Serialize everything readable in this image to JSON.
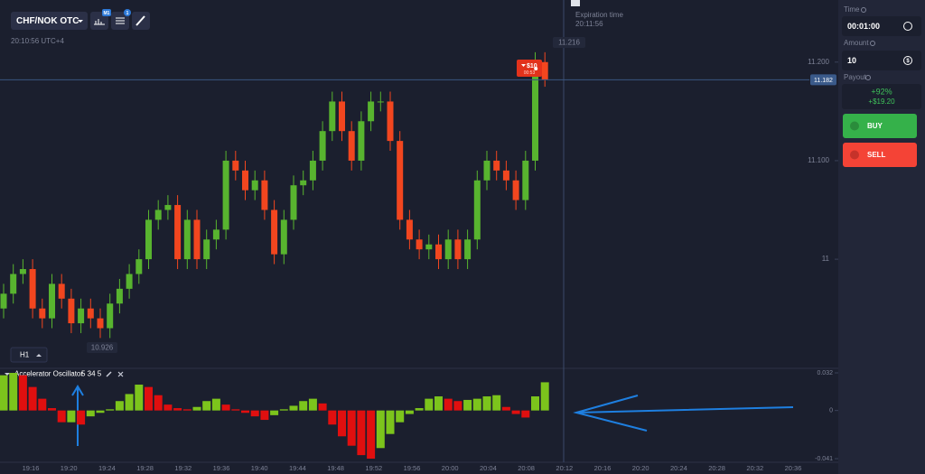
{
  "header": {
    "pair": "CHF/NOK OTC",
    "badge_1": "M1",
    "badge_2": "1",
    "server_time": "20:10:56 UTC+4",
    "timeframe": "H1"
  },
  "expiration": {
    "label": "Expiration time",
    "time": "20:11:56"
  },
  "time_axis": [
    "19:16",
    "19:20",
    "19:24",
    "19:28",
    "19:32",
    "19:36",
    "19:40",
    "19:44",
    "19:48",
    "19:52",
    "19:56",
    "20:00",
    "20:04",
    "20:08",
    "20:12",
    "20:16",
    "20:20",
    "20:24",
    "20:28",
    "20:32",
    "20:36"
  ],
  "chart_data": [
    {
      "type": "candlestick",
      "open": [
        10.95,
        10.965,
        10.985,
        10.99,
        10.95,
        10.94,
        10.975,
        10.96,
        10.935,
        10.95,
        10.94,
        10.93,
        10.955,
        10.97,
        10.985,
        11.0,
        11.04,
        11.05,
        11.055,
        11.0,
        11.04,
        11.0,
        11.02,
        11.03,
        11.1,
        11.09,
        11.07,
        11.08,
        11.05,
        11.005,
        11.04,
        11.075,
        11.08,
        11.1,
        11.13,
        11.16,
        11.13,
        11.1,
        11.14,
        11.16,
        11.16,
        11.12,
        11.04,
        11.02,
        11.01,
        11.015,
        11.0,
        11.02,
        11.0,
        11.02,
        11.08,
        11.1,
        11.09,
        11.08,
        11.06,
        11.1,
        11.2
      ],
      "high": [
        10.975,
        10.995,
        11.0,
        11.0,
        10.96,
        10.985,
        10.985,
        10.97,
        10.96,
        10.96,
        10.95,
        10.965,
        10.98,
        10.995,
        11.01,
        11.05,
        11.06,
        11.065,
        11.065,
        11.05,
        11.05,
        11.03,
        11.04,
        11.11,
        11.11,
        11.1,
        11.09,
        11.09,
        11.06,
        11.05,
        11.085,
        11.09,
        11.11,
        11.14,
        11.17,
        11.17,
        11.14,
        11.15,
        11.17,
        11.17,
        11.17,
        11.13,
        11.05,
        11.03,
        11.025,
        11.025,
        11.03,
        11.03,
        11.03,
        11.09,
        11.11,
        11.11,
        11.1,
        11.09,
        11.11,
        11.21,
        11.21
      ],
      "low": [
        10.94,
        10.955,
        10.975,
        10.94,
        10.93,
        10.93,
        10.95,
        10.925,
        10.925,
        10.93,
        10.92,
        10.92,
        10.945,
        10.96,
        10.975,
        10.99,
        11.03,
        11.04,
        10.99,
        10.99,
        10.99,
        10.99,
        11.01,
        11.02,
        11.08,
        11.06,
        11.06,
        11.04,
        10.995,
        10.995,
        11.03,
        11.065,
        11.07,
        11.09,
        11.12,
        11.12,
        11.09,
        11.09,
        11.13,
        11.15,
        11.11,
        11.03,
        11.01,
        11.0,
        11.0,
        10.99,
        10.99,
        10.99,
        10.99,
        11.01,
        11.07,
        11.08,
        11.07,
        11.05,
        11.05,
        11.09,
        11.175
      ],
      "close": [
        10.965,
        10.985,
        10.99,
        10.95,
        10.94,
        10.975,
        10.96,
        10.935,
        10.95,
        10.94,
        10.93,
        10.955,
        10.97,
        10.985,
        11.0,
        11.04,
        11.05,
        11.055,
        11.0,
        11.04,
        11.0,
        11.02,
        11.03,
        11.1,
        11.09,
        11.07,
        11.08,
        11.05,
        11.005,
        11.04,
        11.075,
        11.08,
        11.1,
        11.13,
        11.16,
        11.13,
        11.1,
        11.14,
        11.16,
        11.16,
        11.12,
        11.04,
        11.02,
        11.01,
        11.015,
        11.0,
        11.02,
        11.0,
        11.02,
        11.08,
        11.1,
        11.09,
        11.08,
        11.06,
        11.1,
        11.2,
        11.182
      ],
      "up_color": "#58b42f",
      "down_color": "#f2461f",
      "ylim": [
        10.892,
        11.263
      ],
      "yticks": [
        {
          "value": 11.2,
          "label": "11.200"
        },
        {
          "value": 11.1,
          "label": "11.100"
        },
        11
      ],
      "current_price": 11.182,
      "max_label": "11.216",
      "min_label": "10.926",
      "trade": {
        "amount": "$10",
        "timer": "00:53"
      }
    },
    {
      "type": "bar",
      "title": "Accelerator Oscillator",
      "params": "5 34 5",
      "values": [
        0.03,
        0.032,
        0.03,
        0.02,
        0.01,
        0.002,
        -0.01,
        -0.01,
        -0.012,
        -0.005,
        -0.002,
        0.001,
        0.008,
        0.014,
        0.022,
        0.02,
        0.013,
        0.005,
        0.002,
        0.001,
        0.003,
        0.008,
        0.01,
        0.005,
        0.001,
        -0.002,
        -0.005,
        -0.008,
        -0.004,
        0.001,
        0.004,
        0.008,
        0.01,
        0.006,
        -0.012,
        -0.022,
        -0.03,
        -0.038,
        -0.041,
        -0.032,
        -0.02,
        -0.01,
        -0.003,
        0.002,
        0.01,
        0.012,
        0.01,
        0.008,
        0.009,
        0.01,
        0.012,
        0.013,
        0.003,
        -0.003,
        -0.006,
        0.012,
        0.024
      ],
      "up_color": "#7cc41c",
      "down_color": "#e00f0f",
      "ylim": [
        -0.041,
        0.032
      ],
      "yticks": [
        0.032,
        0,
        -0.041
      ]
    }
  ],
  "sidebar": {
    "time_label": "Time",
    "time_value": "00:01:00",
    "amount_label": "Amount",
    "amount_value": "10",
    "currency": "$",
    "payout_label": "Payout",
    "payout_percent": "+92%",
    "payout_amount": "+$19.20",
    "buy": "BUY",
    "sell": "SELL"
  }
}
